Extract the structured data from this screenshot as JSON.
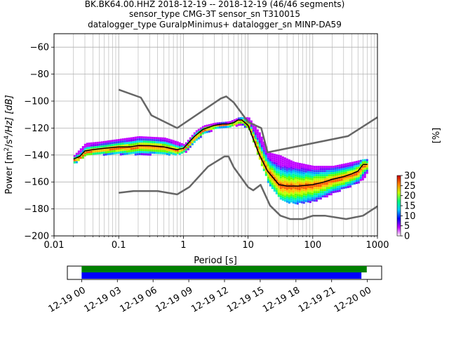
{
  "chart_data": [
    {
      "type": "heatmap",
      "title_lines": [
        "BK.BK64.00.HHZ   2018-12-19 -- 2018-12-19  (46/46 segments)",
        "sensor_type CMG-3T sensor_sn T310015",
        "datalogger_type GuralpMinimus+ datalogger_sn MINP-DA59"
      ],
      "xlabel": "Period [s]",
      "ylabel": "Power [m²/s⁴/Hz] [dB]",
      "ylabel_parts": [
        "Power [m",
        "2",
        "/s",
        "4",
        "/Hz] [dB]"
      ],
      "xscale": "log",
      "xlim": [
        0.01,
        1000
      ],
      "ylim": [
        -200,
        -50
      ],
      "grid": true,
      "x_ticks": [
        {
          "value": 0.01,
          "label": "0.01"
        },
        {
          "value": 0.1,
          "label": "0.1"
        },
        {
          "value": 1,
          "label": "1"
        },
        {
          "value": 10,
          "label": "10"
        },
        {
          "value": 100,
          "label": "100"
        },
        {
          "value": 1000,
          "label": "1000"
        }
      ],
      "y_ticks": [
        {
          "value": -60,
          "label": "−60"
        },
        {
          "value": -80,
          "label": "−80"
        },
        {
          "value": -100,
          "label": "−100"
        },
        {
          "value": -120,
          "label": "−120"
        },
        {
          "value": -140,
          "label": "−140"
        },
        {
          "value": -160,
          "label": "−160"
        },
        {
          "value": -180,
          "label": "−180"
        },
        {
          "value": -200,
          "label": "−200"
        }
      ],
      "noise_model_high": {
        "x": [
          0.1,
          0.22,
          0.32,
          0.8,
          3.8,
          4.6,
          6.0,
          10,
          16,
          20,
          350,
          1000
        ],
        "y": [
          -91.5,
          -97.4,
          -110.5,
          -120,
          -98,
          -96.5,
          -101,
          -115.5,
          -120,
          -138,
          -126,
          -112
        ]
      },
      "noise_model_low": {
        "x": [
          0.1,
          0.17,
          0.4,
          0.8,
          1.24,
          2.4,
          4.3,
          5.0,
          6.0,
          10,
          12,
          15.6,
          21.9,
          31.6,
          45,
          70,
          101,
          154,
          328,
          600,
          1000
        ],
        "y": [
          -168,
          -166.7,
          -166.7,
          -169.2,
          -163.7,
          -148.6,
          -141.1,
          -141.1,
          -149,
          -163.8,
          -166.2,
          -162.1,
          -177.5,
          -185,
          -187.5,
          -187.5,
          -185,
          -185,
          -187.5,
          -185,
          -178
        ]
      },
      "mode_curve": {
        "x": [
          0.02,
          0.025,
          0.03,
          0.04,
          0.06,
          0.1,
          0.15,
          0.2,
          0.3,
          0.5,
          0.8,
          1.0,
          1.5,
          2,
          3,
          4,
          5,
          6,
          7,
          8,
          10,
          12,
          15,
          20,
          30,
          40,
          60,
          100,
          150,
          200,
          300,
          400,
          500,
          600,
          700
        ],
        "y": [
          -143,
          -141,
          -137,
          -136,
          -135,
          -134,
          -134,
          -133,
          -133,
          -134,
          -136,
          -135,
          -126,
          -121,
          -118,
          -117,
          -117,
          -116,
          -114,
          -114,
          -118,
          -128,
          -140,
          -152,
          -162,
          -163,
          -163,
          -162,
          -160,
          -158,
          -156,
          -154,
          -152,
          -147,
          -147
        ]
      },
      "psd_spread": {
        "x": [
          0.02,
          0.03,
          0.05,
          0.1,
          0.2,
          0.5,
          0.8,
          1.0,
          1.5,
          2,
          3,
          5,
          7,
          10,
          15,
          20,
          30,
          50,
          100,
          200,
          400,
          600,
          700
        ],
        "low": [
          -146,
          -140,
          -139,
          -139,
          -139,
          -139,
          -139,
          -138,
          -130,
          -124,
          -120,
          -119,
          -117,
          -120,
          -145,
          -160,
          -172,
          -176,
          -174,
          -168,
          -162,
          -158,
          -150
        ],
        "high": [
          -140,
          -131,
          -130,
          -128,
          -126,
          -127,
          -130,
          -132,
          -122,
          -118,
          -116,
          -115,
          -112,
          -112,
          -124,
          -138,
          -140,
          -145,
          -148,
          -148,
          -145,
          -143,
          -143
        ]
      },
      "colorbar": {
        "label": "[%]",
        "range": [
          0,
          30
        ],
        "ticks": [
          0,
          5,
          10,
          15,
          20,
          25,
          30
        ],
        "colors": [
          "#ffffff",
          "#c000ff",
          "#0000ff",
          "#00c8ff",
          "#00ff80",
          "#c8ff00",
          "#ff8000",
          "#c80000"
        ]
      }
    },
    {
      "type": "timeline",
      "tick_labels": [
        "12-19 00",
        "12-19 03",
        "12-19 06",
        "12-19 09",
        "12-19 12",
        "12-19 15",
        "12-19 18",
        "12-19 21",
        "12-20 00"
      ],
      "tick_hours": [
        0,
        3,
        6,
        9,
        12,
        15,
        18,
        21,
        24
      ],
      "xlim_hours": [
        -1.2,
        25.2
      ],
      "bars": [
        {
          "start": 0,
          "end": 23.95,
          "color": "#008000"
        },
        {
          "start": 0,
          "end": 23.5,
          "color": "#0000ff"
        }
      ]
    }
  ]
}
